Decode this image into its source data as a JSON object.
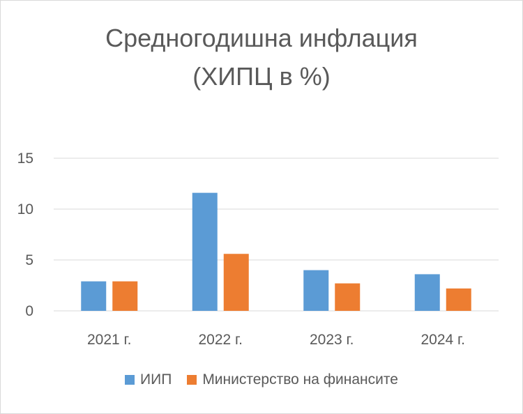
{
  "chart_data": {
    "type": "bar",
    "title_line1": "Средногодишна инфлация",
    "title_line2": "(ХИПЦ в %)",
    "categories": [
      "2021 г.",
      "2022 г.",
      "2023 г.",
      "2024 г."
    ],
    "series": [
      {
        "name": "ИИП",
        "color": "#5b9bd5",
        "values": [
          2.9,
          11.6,
          4.0,
          3.6
        ]
      },
      {
        "name": "Министерство на финансите",
        "color": "#ed7d31",
        "values": [
          2.9,
          5.6,
          2.7,
          2.2
        ]
      }
    ],
    "yticks": [
      0,
      5,
      10,
      15
    ],
    "ylim": [
      0,
      15
    ],
    "grid": true,
    "legend_position": "bottom"
  }
}
